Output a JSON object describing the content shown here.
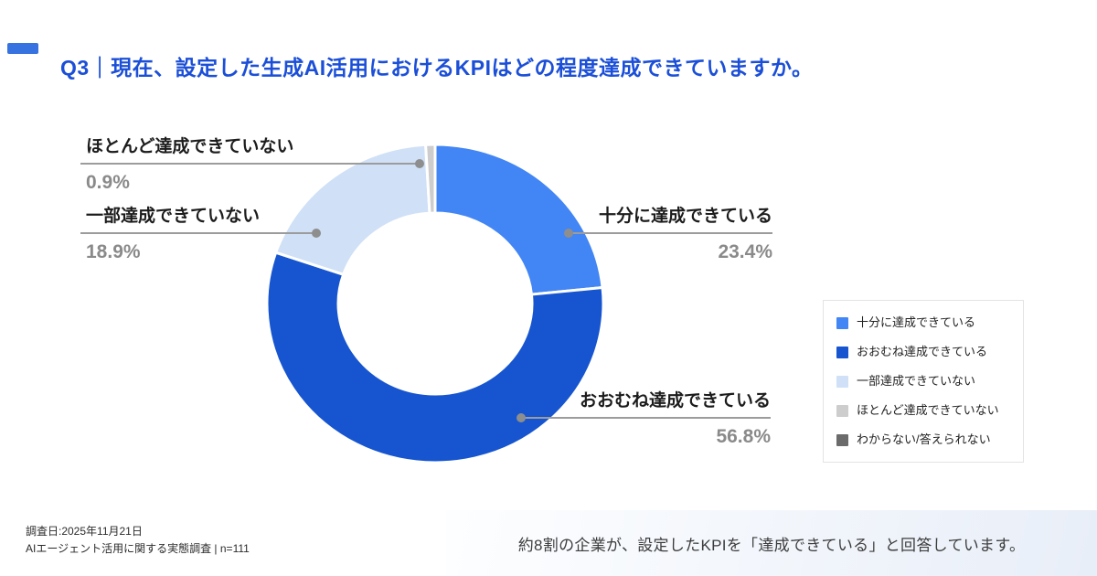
{
  "header": {
    "title": "Q3｜現在、設定した生成AI活用におけるKPIはどの程度達成できていますか。",
    "title_color": "#1b4fd8",
    "accent_color": "#3672e0"
  },
  "chart_data": {
    "type": "pie",
    "donut": true,
    "title": "Q3｜現在、設定した生成AI活用におけるKPIはどの程度達成できていますか。",
    "categories": [
      "十分に達成できている",
      "おおむね達成できている",
      "一部達成できていない",
      "ほとんど達成できていない",
      "わからない/答えられない"
    ],
    "values": [
      23.4,
      56.8,
      18.9,
      0.9,
      0
    ],
    "colors": [
      "#4285f4",
      "#1655cf",
      "#cfe0f7",
      "#cdcdcd",
      "#6b6b6b"
    ],
    "unit": "%",
    "start_angle": 0,
    "direction": "clockwise",
    "legend_position": "right"
  },
  "callouts": [
    {
      "label": "十分に達成できている",
      "value": "23.4%"
    },
    {
      "label": "おおむね達成できている",
      "value": "56.8%"
    },
    {
      "label": "一部達成できていない",
      "value": "18.9%"
    },
    {
      "label": "ほとんど達成できていない",
      "value": "0.9%"
    }
  ],
  "legend": {
    "items": [
      {
        "label": "十分に達成できている",
        "color": "#4285f4"
      },
      {
        "label": "おおむね達成できている",
        "color": "#1655cf"
      },
      {
        "label": "一部達成できていない",
        "color": "#cfe0f7"
      },
      {
        "label": "ほとんど達成できていない",
        "color": "#cdcdcd"
      },
      {
        "label": "わからない/答えられない",
        "color": "#6b6b6b"
      }
    ]
  },
  "footer": {
    "survey_date": "調査日:2025年11月21日",
    "survey_name": "AIエージェント活用に関する実態調査 | n=111",
    "summary": "約8割の企業が、設定したKPIを「達成できている」と回答しています。"
  }
}
